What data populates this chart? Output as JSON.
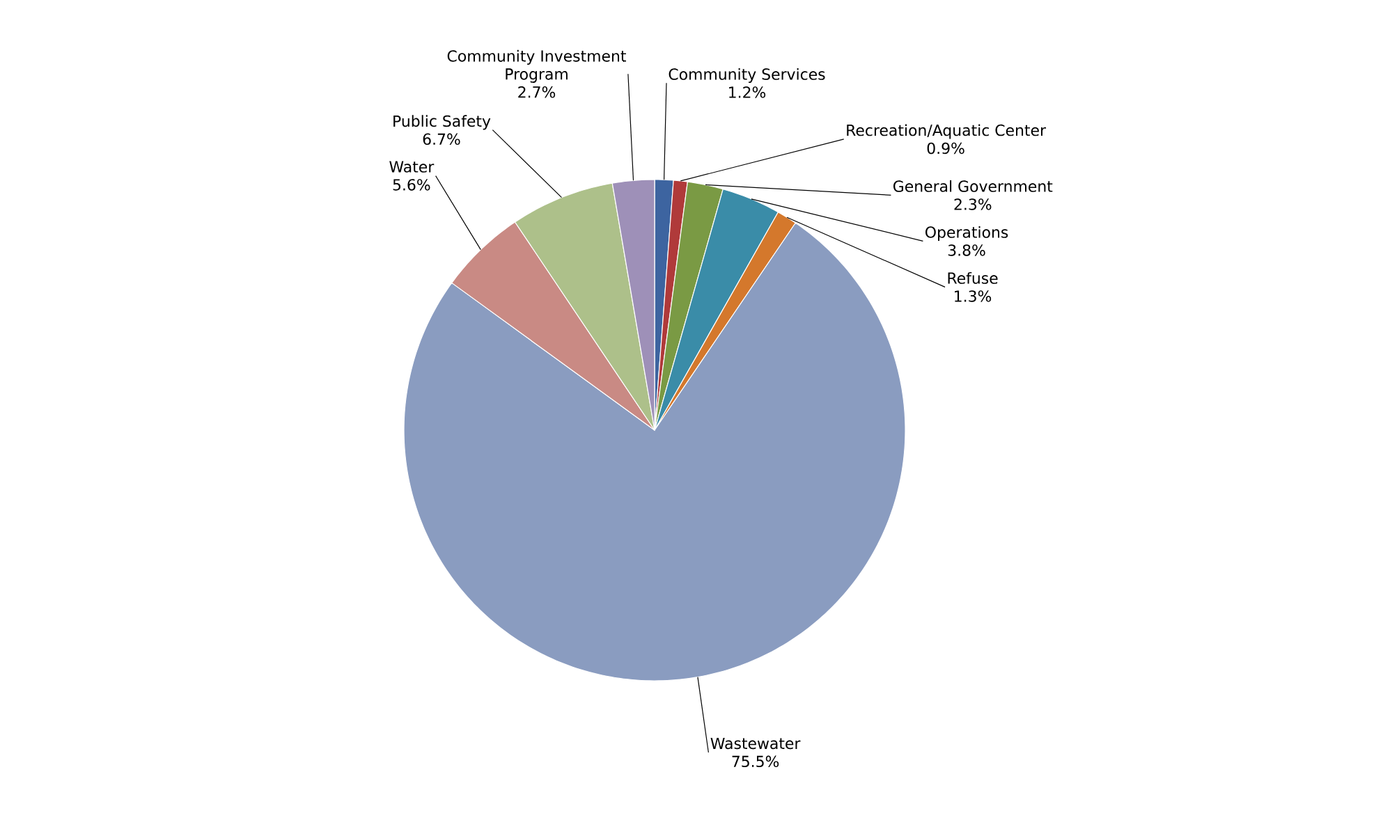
{
  "chart_data": {
    "type": "pie",
    "categories": [
      "Community Services",
      "Recreation/Aquatic Center",
      "General Government",
      "Operations",
      "Refuse",
      "Wastewater",
      "Water",
      "Public Safety",
      "Community Investment Program"
    ],
    "values": [
      1.2,
      0.9,
      2.3,
      3.8,
      1.3,
      75.5,
      5.6,
      6.7,
      2.7
    ],
    "value_labels": [
      "1.2%",
      "0.9%",
      "2.3%",
      "3.8%",
      "1.3%",
      "75.5%",
      "5.6%",
      "6.7%",
      "2.7%"
    ],
    "colors": [
      "#3d64a0",
      "#b03a3a",
      "#7a9a44",
      "#3a8ca8",
      "#d4782c",
      "#8a9cc0",
      "#c98a84",
      "#adc08a",
      "#9e90b8"
    ]
  }
}
